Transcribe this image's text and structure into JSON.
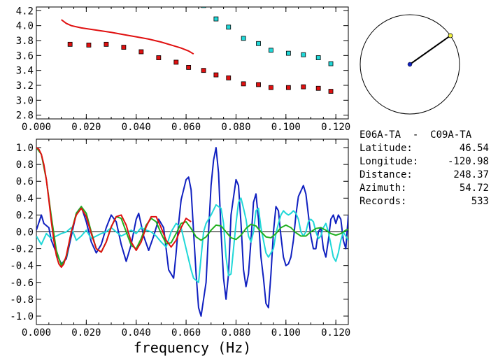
{
  "info": {
    "station_pair": "E06A-TA  -  C09A-TA",
    "latitude_label": "Latitude:",
    "latitude_value": "46.54",
    "longitude_label": "Longitude:",
    "longitude_value": "-120.98",
    "distance_label": "Distance:",
    "distance_value": "248.37",
    "azimuth_label": "Azimuth:",
    "azimuth_value": "54.72",
    "records_label": "Records:",
    "records_value": "533"
  },
  "colors": {
    "red": "#e01010",
    "cyan": "#20d8d8",
    "blue": "#1020c0",
    "green": "#20b020",
    "olive": "#707020"
  },
  "chart_data": [
    {
      "type": "scatter",
      "title": "",
      "xlabel": "",
      "ylabel": "",
      "xlim": [
        0.0,
        0.125
      ],
      "ylim": [
        2.75,
        4.25
      ],
      "x_ticks": [
        "0.000",
        "0.020",
        "0.040",
        "0.060",
        "0.080",
        "0.100",
        "0.120"
      ],
      "y_ticks": [
        "2.8",
        "3.0",
        "3.2",
        "3.4",
        "3.6",
        "3.8",
        "4.0",
        "4.2"
      ],
      "series": [
        {
          "type": "line",
          "color": "#e01010",
          "x": [
            0.01,
            0.012,
            0.014,
            0.018,
            0.022,
            0.026,
            0.03,
            0.035,
            0.04,
            0.045,
            0.05,
            0.055,
            0.058,
            0.061,
            0.063
          ],
          "y": [
            4.08,
            4.03,
            4.0,
            3.97,
            3.95,
            3.93,
            3.91,
            3.88,
            3.85,
            3.82,
            3.78,
            3.73,
            3.7,
            3.66,
            3.62
          ]
        },
        {
          "type": "markers",
          "color": "#e01010",
          "x": [
            0.0135,
            0.021,
            0.028,
            0.035,
            0.042,
            0.049,
            0.056,
            0.061,
            0.067,
            0.072,
            0.077,
            0.083,
            0.089,
            0.094,
            0.101,
            0.107,
            0.113,
            0.118
          ],
          "y": [
            3.75,
            3.74,
            3.75,
            3.71,
            3.65,
            3.57,
            3.51,
            3.44,
            3.4,
            3.34,
            3.3,
            3.22,
            3.21,
            3.17,
            3.17,
            3.18,
            3.16,
            3.12
          ]
        },
        {
          "type": "markers",
          "color": "#20d8d8",
          "x": [
            0.067,
            0.072,
            0.077,
            0.083,
            0.089,
            0.094,
            0.101,
            0.107,
            0.113,
            0.118
          ],
          "y": [
            4.27,
            4.09,
            3.98,
            3.83,
            3.76,
            3.67,
            3.63,
            3.61,
            3.57,
            3.49
          ]
        }
      ]
    },
    {
      "type": "line",
      "title": "",
      "xlabel": "frequency (Hz)",
      "ylabel": "",
      "xlim": [
        0.0,
        0.125
      ],
      "ylim": [
        -1.1,
        1.1
      ],
      "x_ticks": [
        "0.000",
        "0.020",
        "0.040",
        "0.060",
        "0.080",
        "0.100",
        "0.120"
      ],
      "y_ticks": [
        "-1.0",
        "-0.8",
        "-0.6",
        "-0.4",
        "-0.2",
        "0.0",
        "0.2",
        "0.4",
        "0.6",
        "0.8",
        "1.0"
      ],
      "series": [
        {
          "color": "#1020c0",
          "x": [
            0.0,
            0.002,
            0.003,
            0.005,
            0.006,
            0.008,
            0.01,
            0.012,
            0.014,
            0.016,
            0.018,
            0.02,
            0.022,
            0.024,
            0.026,
            0.028,
            0.03,
            0.032,
            0.034,
            0.036,
            0.038,
            0.04,
            0.041,
            0.043,
            0.045,
            0.047,
            0.049,
            0.051,
            0.052,
            0.053,
            0.055,
            0.056,
            0.057,
            0.058,
            0.06,
            0.061,
            0.062,
            0.063,
            0.064,
            0.065,
            0.066,
            0.068,
            0.069,
            0.07,
            0.071,
            0.072,
            0.073,
            0.074,
            0.075,
            0.076,
            0.077,
            0.078,
            0.08,
            0.081,
            0.082,
            0.083,
            0.084,
            0.085,
            0.086,
            0.087,
            0.088,
            0.089,
            0.09,
            0.091,
            0.092,
            0.093,
            0.094,
            0.095,
            0.096,
            0.097,
            0.098,
            0.099,
            0.1,
            0.101,
            0.102,
            0.103,
            0.104,
            0.105,
            0.107,
            0.108,
            0.109,
            0.11,
            0.111,
            0.112,
            0.113,
            0.114,
            0.115,
            0.116,
            0.117,
            0.118,
            0.119,
            0.12,
            0.121,
            0.122,
            0.123,
            0.124,
            0.125
          ],
          "y": [
            0.02,
            0.2,
            0.1,
            0.05,
            -0.1,
            -0.25,
            -0.38,
            -0.32,
            -0.05,
            0.22,
            0.3,
            0.12,
            -0.12,
            -0.25,
            -0.15,
            0.05,
            0.2,
            0.12,
            -0.15,
            -0.35,
            -0.15,
            0.15,
            0.22,
            -0.05,
            -0.22,
            -0.05,
            0.15,
            0.05,
            -0.2,
            -0.45,
            -0.55,
            -0.25,
            0.1,
            0.38,
            0.62,
            0.65,
            0.5,
            0.0,
            -0.5,
            -0.9,
            -1.0,
            -0.6,
            0.0,
            0.55,
            0.85,
            1.0,
            0.7,
            0.0,
            -0.55,
            -0.8,
            -0.5,
            0.2,
            0.62,
            0.55,
            0.1,
            -0.45,
            -0.65,
            -0.5,
            -0.1,
            0.35,
            0.45,
            0.15,
            -0.3,
            -0.55,
            -0.85,
            -0.9,
            -0.5,
            0.0,
            0.3,
            0.25,
            -0.05,
            -0.3,
            -0.4,
            -0.38,
            -0.3,
            -0.1,
            0.2,
            0.42,
            0.55,
            0.45,
            0.2,
            -0.05,
            -0.2,
            -0.2,
            0.0,
            0.05,
            -0.2,
            -0.3,
            -0.1,
            0.15,
            0.2,
            0.1,
            0.2,
            0.15,
            -0.1,
            -0.2,
            0.2
          ]
        },
        {
          "color": "#20d8d8",
          "x": [
            0.0,
            0.002,
            0.004,
            0.006,
            0.008,
            0.01,
            0.012,
            0.014,
            0.016,
            0.018,
            0.02,
            0.022,
            0.024,
            0.026,
            0.028,
            0.03,
            0.032,
            0.034,
            0.036,
            0.038,
            0.04,
            0.042,
            0.044,
            0.046,
            0.048,
            0.05,
            0.052,
            0.054,
            0.056,
            0.058,
            0.06,
            0.062,
            0.063,
            0.065,
            0.066,
            0.067,
            0.068,
            0.07,
            0.072,
            0.074,
            0.075,
            0.076,
            0.077,
            0.078,
            0.079,
            0.08,
            0.081,
            0.082,
            0.083,
            0.084,
            0.085,
            0.086,
            0.087,
            0.088,
            0.089,
            0.09,
            0.091,
            0.092,
            0.093,
            0.094,
            0.095,
            0.096,
            0.097,
            0.098,
            0.099,
            0.1,
            0.101,
            0.102,
            0.103,
            0.104,
            0.105,
            0.106,
            0.107,
            0.108,
            0.109,
            0.11,
            0.111,
            0.112,
            0.113,
            0.114,
            0.115,
            0.116,
            0.117,
            0.118,
            0.119,
            0.12,
            0.121,
            0.122,
            0.123,
            0.124,
            0.125
          ],
          "y": [
            -0.05,
            -0.15,
            -0.02,
            -0.08,
            -0.05,
            -0.02,
            0.0,
            0.05,
            -0.1,
            -0.05,
            0.02,
            -0.08,
            -0.05,
            -0.02,
            0.0,
            0.05,
            0.0,
            -0.05,
            -0.02,
            0.02,
            -0.02,
            0.05,
            0.02,
            0.0,
            -0.05,
            -0.12,
            -0.18,
            0.0,
            0.1,
            0.05,
            -0.2,
            -0.45,
            -0.55,
            -0.6,
            -0.3,
            0.0,
            0.1,
            0.2,
            0.32,
            0.28,
            0.1,
            -0.3,
            -0.52,
            -0.5,
            -0.2,
            0.1,
            0.35,
            0.4,
            0.28,
            0.15,
            -0.05,
            -0.12,
            0.0,
            0.25,
            0.28,
            0.05,
            -0.1,
            -0.25,
            -0.3,
            -0.25,
            -0.2,
            -0.02,
            0.1,
            0.2,
            0.25,
            0.22,
            0.2,
            0.22,
            0.25,
            0.22,
            0.15,
            0.0,
            -0.05,
            0.0,
            0.12,
            0.15,
            0.12,
            0.0,
            -0.08,
            -0.05,
            0.05,
            0.1,
            0.0,
            -0.15,
            -0.3,
            -0.35,
            -0.25,
            -0.1,
            0.0,
            -0.05,
            -0.1
          ]
        },
        {
          "color": "#20b020",
          "x": [
            0.0,
            0.002,
            0.004,
            0.006,
            0.008,
            0.01,
            0.012,
            0.014,
            0.016,
            0.018,
            0.02,
            0.022,
            0.024,
            0.026,
            0.028,
            0.03,
            0.032,
            0.034,
            0.036,
            0.038,
            0.04,
            0.042,
            0.044,
            0.046,
            0.048,
            0.05,
            0.052,
            0.054,
            0.056,
            0.058,
            0.06,
            0.062,
            0.064,
            0.066,
            0.068,
            0.07,
            0.072,
            0.074,
            0.076,
            0.078,
            0.08,
            0.082,
            0.084,
            0.086,
            0.088,
            0.09,
            0.092,
            0.094,
            0.096,
            0.098,
            0.1,
            0.102,
            0.104,
            0.106,
            0.108,
            0.11,
            0.112,
            0.114,
            0.116,
            0.118,
            0.12,
            0.122,
            0.124,
            0.125
          ],
          "y": [
            1.0,
            0.92,
            0.62,
            0.18,
            -0.22,
            -0.4,
            -0.3,
            0.0,
            0.22,
            0.3,
            0.22,
            0.0,
            -0.2,
            -0.24,
            -0.12,
            0.06,
            0.18,
            0.16,
            0.0,
            -0.16,
            -0.2,
            -0.08,
            0.08,
            0.16,
            0.12,
            -0.02,
            -0.14,
            -0.13,
            -0.02,
            0.1,
            0.12,
            0.04,
            -0.06,
            -0.1,
            -0.06,
            0.02,
            0.08,
            0.07,
            0.0,
            -0.07,
            -0.09,
            -0.04,
            0.04,
            0.09,
            0.07,
            0.0,
            -0.06,
            -0.07,
            -0.02,
            0.05,
            0.08,
            0.05,
            -0.01,
            -0.05,
            -0.05,
            0.0,
            0.04,
            0.05,
            0.02,
            -0.02,
            -0.04,
            -0.02,
            0.02,
            0.03
          ]
        },
        {
          "color": "#e01010",
          "x": [
            0.0,
            0.001,
            0.002,
            0.003,
            0.004,
            0.005,
            0.006,
            0.007,
            0.008,
            0.009,
            0.01,
            0.011,
            0.012,
            0.014,
            0.016,
            0.018,
            0.02,
            0.022,
            0.024,
            0.026,
            0.028,
            0.03,
            0.032,
            0.034,
            0.036,
            0.038,
            0.04,
            0.042,
            0.044,
            0.046,
            0.048,
            0.05,
            0.052,
            0.054,
            0.056,
            0.058,
            0.06,
            0.062
          ],
          "y": [
            1.0,
            0.98,
            0.92,
            0.8,
            0.62,
            0.38,
            0.12,
            -0.1,
            -0.28,
            -0.38,
            -0.42,
            -0.38,
            -0.28,
            0.0,
            0.2,
            0.28,
            0.18,
            -0.02,
            -0.2,
            -0.24,
            -0.12,
            0.06,
            0.18,
            0.2,
            0.08,
            -0.12,
            -0.22,
            -0.12,
            0.06,
            0.18,
            0.18,
            0.05,
            -0.1,
            -0.18,
            -0.1,
            0.05,
            0.16,
            0.12
          ]
        }
      ]
    },
    {
      "type": "polar",
      "title": "",
      "azimuth_deg": 54.72,
      "note_marker": "endpoint"
    }
  ]
}
